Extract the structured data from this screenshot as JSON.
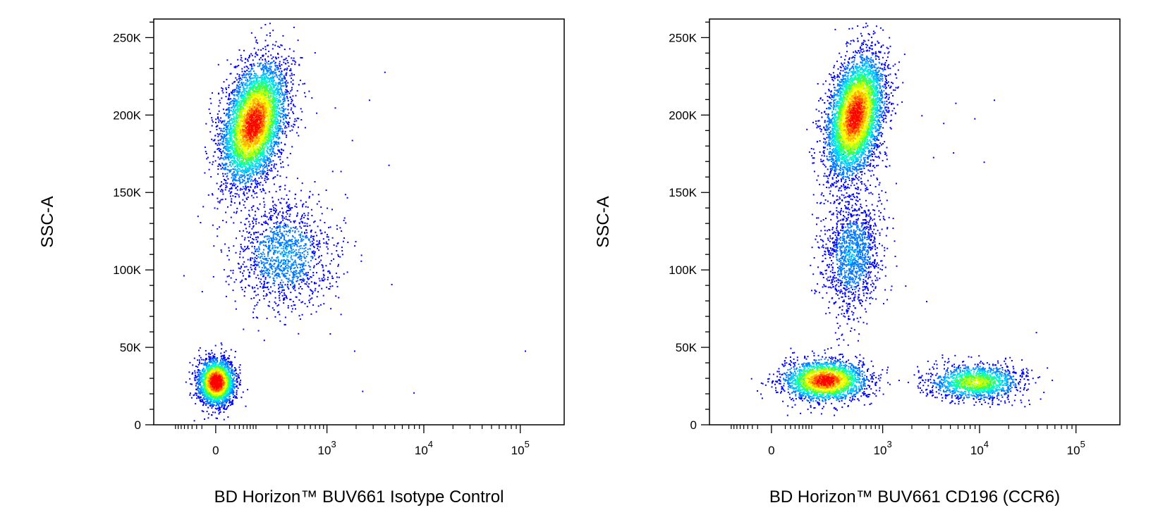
{
  "chart_data": [
    {
      "type": "scatter",
      "subtype": "flow-cytometry density dot plot (pseudocolor)",
      "xlabel": "BD Horizon™ BUV661 Isotype Control",
      "ylabel": "SSC-A",
      "x_scale": "biexponential (linear near 0, log above ~10^2)",
      "x_ticks": [
        {
          "base": "0",
          "exp": ""
        },
        {
          "base": "10",
          "exp": "3"
        },
        {
          "base": "10",
          "exp": "4"
        },
        {
          "base": "10",
          "exp": "5"
        }
      ],
      "y_ticks": [
        "0",
        "50K",
        "100K",
        "150K",
        "200K",
        "250K"
      ],
      "ylim": [
        0,
        262000
      ],
      "density_colors": [
        "#0000ff",
        "#00ffff",
        "#00ff00",
        "#ffff00",
        "#ff0000"
      ],
      "populations": [
        {
          "x_center": 80,
          "y_center": 195000,
          "density": "high",
          "events": 5200
        },
        {
          "x_center": 250,
          "y_center": 110000,
          "density": "low",
          "events": 1400
        },
        {
          "x_center": 0,
          "y_center": 28000,
          "density": "very-high",
          "events": 2600
        }
      ],
      "sparse_events": [
        {
          "x": 1200,
          "y": 205000
        },
        {
          "x": 2700,
          "y": 210000
        },
        {
          "x": 3900,
          "y": 228000
        },
        {
          "x": 4300,
          "y": 168000
        },
        {
          "x": 1800,
          "y": 184000
        },
        {
          "x": 4600,
          "y": 91000
        },
        {
          "x": 1600,
          "y": 147000
        },
        {
          "x": 2300,
          "y": 22000
        },
        {
          "x": 7800,
          "y": 21000
        },
        {
          "x": 110000,
          "y": 48000
        },
        {
          "x": 1900,
          "y": 48000
        }
      ]
    },
    {
      "type": "scatter",
      "subtype": "flow-cytometry density dot plot (pseudocolor)",
      "xlabel": "BD Horizon™ BUV661 CD196 (CCR6)",
      "ylabel": "SSC-A",
      "x_scale": "biexponential (linear near 0, log above ~10^2)",
      "x_ticks": [
        {
          "base": "0",
          "exp": ""
        },
        {
          "base": "10",
          "exp": "3"
        },
        {
          "base": "10",
          "exp": "4"
        },
        {
          "base": "10",
          "exp": "5"
        }
      ],
      "y_ticks": [
        "0",
        "50K",
        "100K",
        "150K",
        "200K",
        "250K"
      ],
      "ylim": [
        0,
        262000
      ],
      "density_colors": [
        "#0000ff",
        "#00ffff",
        "#00ff00",
        "#ffff00",
        "#ff0000"
      ],
      "populations": [
        {
          "x_center": 420,
          "y_center": 200000,
          "density": "high",
          "events": 5200
        },
        {
          "x_center": 380,
          "y_center": 110000,
          "density": "low",
          "events": 1400
        },
        {
          "x_center": 150,
          "y_center": 29000,
          "density": "high",
          "events": 2600
        },
        {
          "x_center": 9000,
          "y_center": 28000,
          "density": "medium",
          "events": 1500
        }
      ],
      "sparse_events": [
        {
          "x": 2500,
          "y": 200000
        },
        {
          "x": 4200,
          "y": 195000
        },
        {
          "x": 5600,
          "y": 208000
        },
        {
          "x": 8800,
          "y": 198000
        },
        {
          "x": 14000,
          "y": 210000
        },
        {
          "x": 11000,
          "y": 170000
        },
        {
          "x": 3300,
          "y": 173000
        },
        {
          "x": 5300,
          "y": 176000
        },
        {
          "x": 38000,
          "y": 60000
        },
        {
          "x": 2800,
          "y": 80000
        },
        {
          "x": 1700,
          "y": 90000
        }
      ]
    }
  ]
}
